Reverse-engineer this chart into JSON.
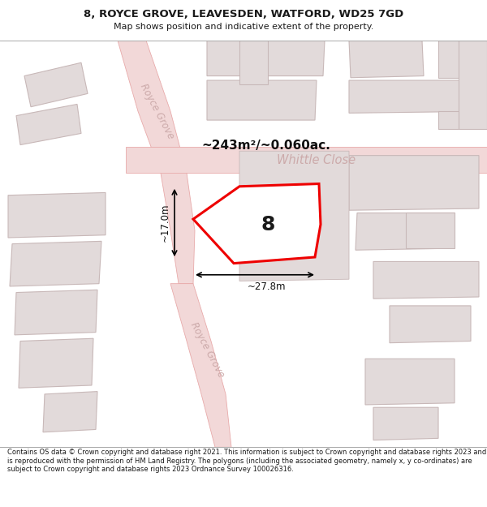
{
  "title": "8, ROYCE GROVE, LEAVESDEN, WATFORD, WD25 7GD",
  "subtitle": "Map shows position and indicative extent of the property.",
  "footer": "Contains OS data © Crown copyright and database right 2021. This information is subject to Crown copyright and database rights 2023 and is reproduced with the permission of HM Land Registry. The polygons (including the associated geometry, namely x, y co-ordinates) are subject to Crown copyright and database rights 2023 Ordnance Survey 100026316.",
  "area_label": "~243m²/~0.060ac.",
  "plot_number": "8",
  "dim_width": "~27.8m",
  "dim_height": "~17.0m",
  "street_whittle": "Whittle Close",
  "street_royce_upper": "Royce Grove",
  "street_royce_lower": "Royce Grove",
  "map_bg": "#f5efef",
  "road_fill": "#f2d8d8",
  "road_edge": "#e8aaaa",
  "bld_fill": "#e2dada",
  "bld_edge": "#c8b8b8",
  "highlight_edge": "#ee0000",
  "highlight_fill": "#ffffff",
  "street_color": "#ccaaaa",
  "title_color": "#1a1a1a",
  "footer_color": "#1a1a1a"
}
